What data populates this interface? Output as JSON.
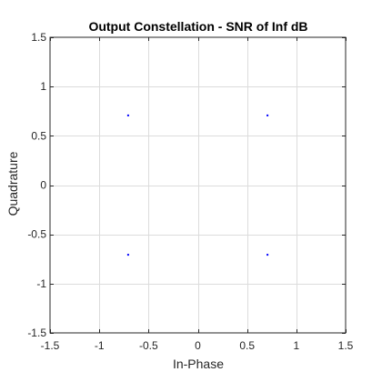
{
  "chart_data": {
    "type": "scatter",
    "title": "Output Constellation - SNR of Inf dB",
    "xlabel": "In-Phase",
    "ylabel": "Quadrature",
    "xlim": [
      -1.5,
      1.5
    ],
    "ylim": [
      -1.5,
      1.5
    ],
    "xticks": [
      -1.5,
      -1,
      -0.5,
      0,
      0.5,
      1,
      1.5
    ],
    "yticks": [
      -1.5,
      -1,
      -0.5,
      0,
      0.5,
      1,
      1.5
    ],
    "xtick_labels": [
      "-1.5",
      "-1",
      "-0.5",
      "0",
      "0.5",
      "1",
      "1.5"
    ],
    "ytick_labels": [
      "-1.5",
      "-1",
      "-0.5",
      "0",
      "0.5",
      "1",
      "1.5"
    ],
    "grid": true,
    "points": [
      {
        "x": -0.7071,
        "y": 0.7071
      },
      {
        "x": 0.7071,
        "y": 0.7071
      },
      {
        "x": -0.7071,
        "y": -0.7071
      },
      {
        "x": 0.7071,
        "y": -0.7071
      }
    ],
    "marker_color": "#0000ff"
  }
}
